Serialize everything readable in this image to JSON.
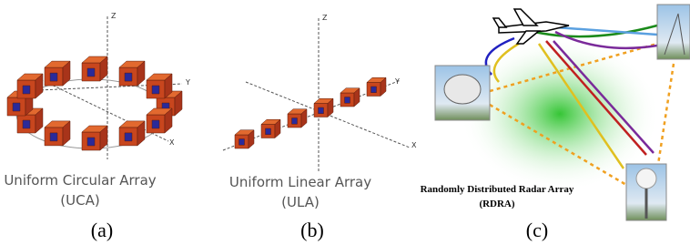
{
  "panels": [
    {
      "axes": {
        "z": "Z",
        "y": "Y",
        "x": "X"
      },
      "caption": [
        "Uniform Circular Array",
        "(UCA)"
      ],
      "label": "(a)"
    },
    {
      "axes": {
        "z": "Z",
        "y": "Y",
        "x": "X"
      },
      "caption": [
        "Uniform Linear Array",
        "(ULA)"
      ],
      "label": "(b)"
    },
    {
      "caption": [
        "Randomly Distributed Radar Array",
        "(RDRA)"
      ],
      "label": "(c)"
    }
  ]
}
